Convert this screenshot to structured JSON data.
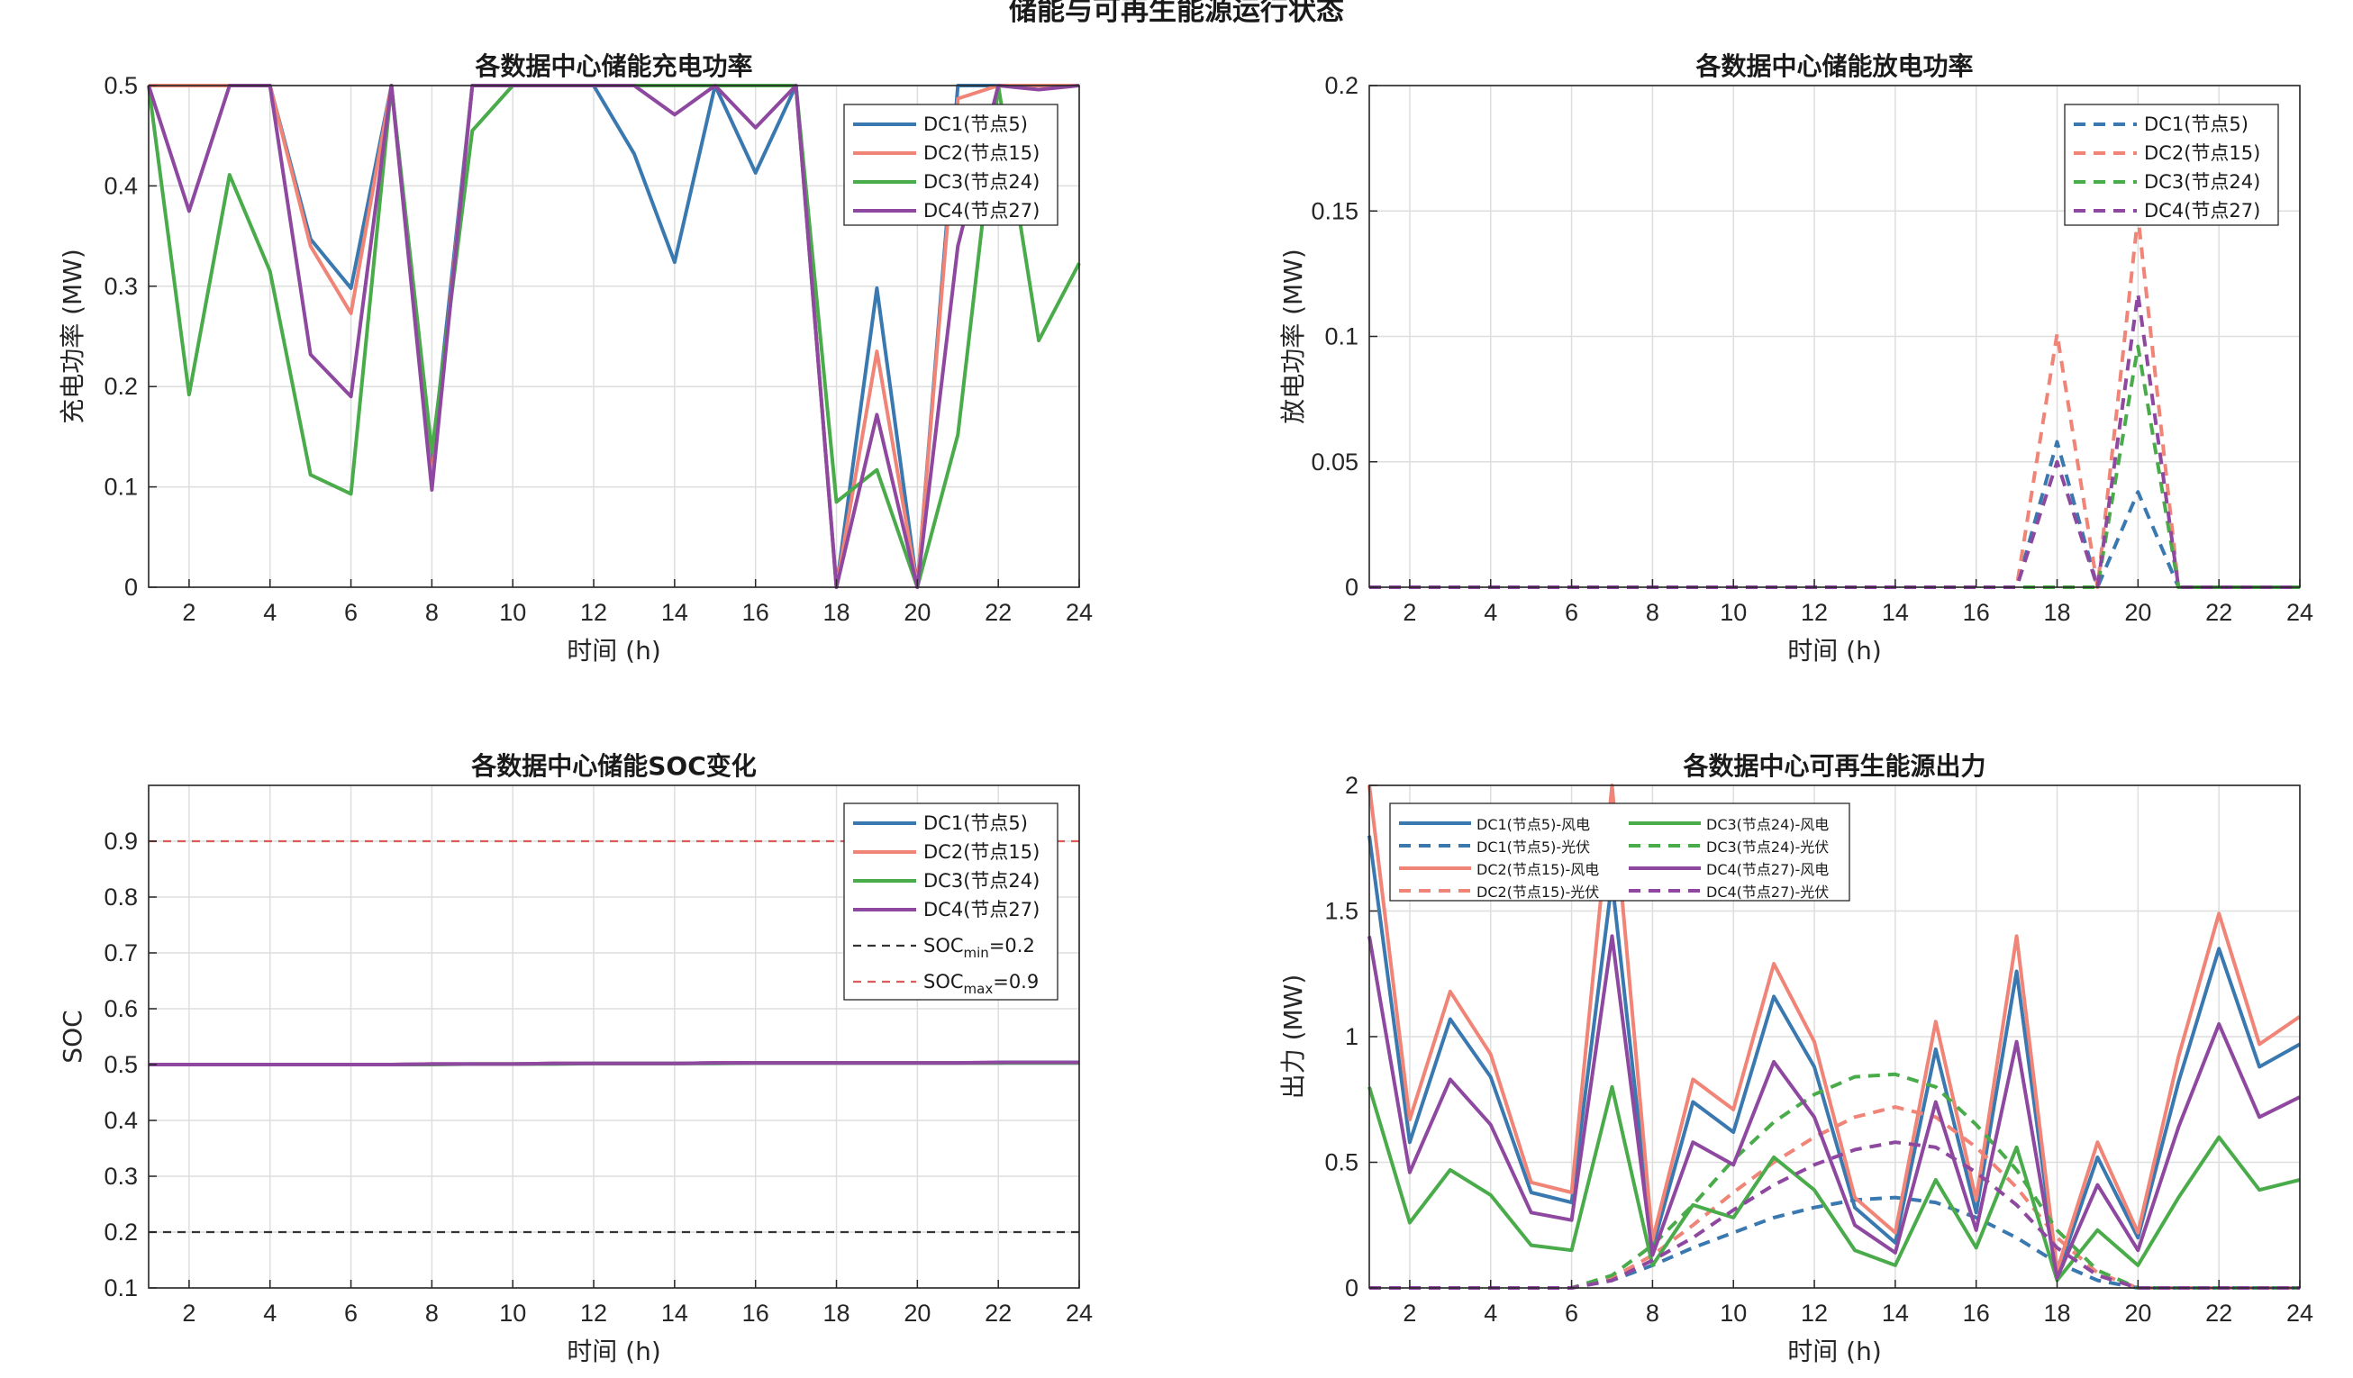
{
  "figure": {
    "title": "储能与可再生能源运行状态"
  },
  "colors": {
    "DC1": "#3a78b0",
    "DC2": "#f08477",
    "DC3": "#4aab4a",
    "DC4": "#8e48a0",
    "socmin": "#333333",
    "socmax": "#e05a5a",
    "grid": "#dedede",
    "axis": "#262626"
  },
  "chart_data": [
    {
      "id": "charge",
      "type": "line",
      "title": "各数据中心储能充电功率",
      "xlabel": "时间 (h)",
      "ylabel": "充电功率 (MW)",
      "xlim": [
        1,
        24
      ],
      "ylim": [
        0,
        0.5
      ],
      "xticks": [
        2,
        4,
        6,
        8,
        10,
        12,
        14,
        16,
        18,
        20,
        22,
        24
      ],
      "yticks": [
        0,
        0.1,
        0.2,
        0.3,
        0.4,
        0.5
      ],
      "grid": true,
      "legend_position": "top-right",
      "x": [
        1,
        2,
        3,
        4,
        5,
        6,
        7,
        8,
        9,
        10,
        11,
        12,
        13,
        14,
        15,
        16,
        17,
        18,
        19,
        20,
        21,
        22,
        23,
        24
      ],
      "series": [
        {
          "name": "DC1(节点5)",
          "color_key": "DC1",
          "dash": false,
          "values": [
            0.5,
            0.5,
            0.5,
            0.5,
            0.347,
            0.298,
            0.5,
            0.125,
            0.5,
            0.5,
            0.5,
            0.5,
            0.432,
            0.324,
            0.5,
            0.413,
            0.5,
            0.0,
            0.298,
            0.0,
            0.5,
            0.5,
            0.5,
            0.5
          ]
        },
        {
          "name": "DC2(节点15)",
          "color_key": "DC2",
          "dash": false,
          "values": [
            0.5,
            0.5,
            0.5,
            0.5,
            0.34,
            0.273,
            0.5,
            0.105,
            0.5,
            0.5,
            0.5,
            0.5,
            0.5,
            0.5,
            0.5,
            0.5,
            0.5,
            0.0,
            0.235,
            0.0,
            0.487,
            0.5,
            0.5,
            0.5
          ]
        },
        {
          "name": "DC3(节点24)",
          "color_key": "DC3",
          "dash": false,
          "values": [
            0.5,
            0.192,
            0.411,
            0.315,
            0.112,
            0.093,
            0.5,
            0.135,
            0.455,
            0.5,
            0.5,
            0.5,
            0.5,
            0.5,
            0.5,
            0.5,
            0.5,
            0.085,
            0.117,
            0.0,
            0.152,
            0.5,
            0.246,
            0.323
          ]
        },
        {
          "name": "DC4(节点27)",
          "color_key": "DC4",
          "dash": false,
          "values": [
            0.5,
            0.375,
            0.5,
            0.5,
            0.232,
            0.19,
            0.5,
            0.097,
            0.5,
            0.5,
            0.5,
            0.5,
            0.5,
            0.471,
            0.5,
            0.458,
            0.5,
            0.0,
            0.172,
            0.0,
            0.34,
            0.5,
            0.496,
            0.5
          ]
        }
      ]
    },
    {
      "id": "discharge",
      "type": "line",
      "title": "各数据中心储能放电功率",
      "xlabel": "时间 (h)",
      "ylabel": "放电功率 (MW)",
      "xlim": [
        1,
        24
      ],
      "ylim": [
        0,
        0.2
      ],
      "xticks": [
        2,
        4,
        6,
        8,
        10,
        12,
        14,
        16,
        18,
        20,
        22,
        24
      ],
      "yticks": [
        0,
        0.05,
        0.1,
        0.15,
        0.2
      ],
      "grid": true,
      "legend_position": "top-right",
      "x": [
        1,
        2,
        3,
        4,
        5,
        6,
        7,
        8,
        9,
        10,
        11,
        12,
        13,
        14,
        15,
        16,
        17,
        18,
        19,
        20,
        21,
        22,
        23,
        24
      ],
      "series": [
        {
          "name": "DC1(节点5)",
          "color_key": "DC1",
          "dash": true,
          "values": [
            0,
            0,
            0,
            0,
            0,
            0,
            0,
            0,
            0,
            0,
            0,
            0,
            0,
            0,
            0,
            0,
            0,
            0.058,
            0,
            0.038,
            0,
            0,
            0,
            0
          ]
        },
        {
          "name": "DC2(节点15)",
          "color_key": "DC2",
          "dash": true,
          "values": [
            0,
            0,
            0,
            0,
            0,
            0,
            0,
            0,
            0,
            0,
            0,
            0,
            0,
            0,
            0,
            0,
            0,
            0.101,
            0,
            0.148,
            0,
            0,
            0,
            0
          ]
        },
        {
          "name": "DC3(节点24)",
          "color_key": "DC3",
          "dash": true,
          "values": [
            0,
            0,
            0,
            0,
            0,
            0,
            0,
            0,
            0,
            0,
            0,
            0,
            0,
            0,
            0,
            0,
            0,
            0,
            0,
            0.096,
            0,
            0,
            0,
            0
          ]
        },
        {
          "name": "DC4(节点27)",
          "color_key": "DC4",
          "dash": true,
          "values": [
            0,
            0,
            0,
            0,
            0,
            0,
            0,
            0,
            0,
            0,
            0,
            0,
            0,
            0,
            0,
            0,
            0,
            0.05,
            0,
            0.117,
            0,
            0,
            0,
            0
          ]
        }
      ]
    },
    {
      "id": "soc",
      "type": "line",
      "title": "各数据中心储能SOC变化",
      "xlabel": "时间 (h)",
      "ylabel": "SOC",
      "xlim": [
        1,
        24
      ],
      "ylim": [
        0.1,
        1.0
      ],
      "xticks": [
        2,
        4,
        6,
        8,
        10,
        12,
        14,
        16,
        18,
        20,
        22,
        24
      ],
      "yticks": [
        0.1,
        0.2,
        0.3,
        0.4,
        0.5,
        0.6,
        0.7,
        0.8,
        0.9
      ],
      "grid": true,
      "legend_position": "top-right",
      "x": [
        1,
        2,
        3,
        4,
        5,
        6,
        7,
        8,
        9,
        10,
        11,
        12,
        13,
        14,
        15,
        16,
        17,
        18,
        19,
        20,
        21,
        22,
        23,
        24
      ],
      "series": [
        {
          "name": "DC1(节点5)",
          "color_key": "DC1",
          "dash": false,
          "values": [
            0.5,
            0.5,
            0.5,
            0.5,
            0.5,
            0.5,
            0.5,
            0.501,
            0.501,
            0.501,
            0.502,
            0.502,
            0.502,
            0.502,
            0.503,
            0.503,
            0.503,
            0.503,
            0.503,
            0.503,
            0.503,
            0.503,
            0.504,
            0.504
          ]
        },
        {
          "name": "DC2(节点15)",
          "color_key": "DC2",
          "dash": false,
          "values": [
            0.5,
            0.5,
            0.5,
            0.5,
            0.5,
            0.5,
            0.5,
            0.501,
            0.501,
            0.501,
            0.502,
            0.502,
            0.502,
            0.502,
            0.503,
            0.503,
            0.503,
            0.503,
            0.503,
            0.503,
            0.503,
            0.503,
            0.504,
            0.504
          ]
        },
        {
          "name": "DC3(节点24)",
          "color_key": "DC3",
          "dash": false,
          "values": [
            0.5,
            0.5,
            0.5,
            0.5,
            0.5,
            0.5,
            0.5,
            0.5,
            0.501,
            0.501,
            0.501,
            0.502,
            0.502,
            0.502,
            0.502,
            0.503,
            0.503,
            0.503,
            0.503,
            0.503,
            0.503,
            0.503,
            0.503,
            0.503
          ]
        },
        {
          "name": "DC4(节点27)",
          "color_key": "DC4",
          "dash": false,
          "values": [
            0.5,
            0.5,
            0.5,
            0.5,
            0.5,
            0.5,
            0.5,
            0.501,
            0.501,
            0.501,
            0.502,
            0.502,
            0.502,
            0.502,
            0.503,
            0.503,
            0.503,
            0.503,
            0.503,
            0.503,
            0.503,
            0.504,
            0.504,
            0.504
          ]
        },
        {
          "name": "SOC_min=0.2",
          "label_main": "SOC",
          "label_sub": "min",
          "label_tail": "=0.2",
          "color_key": "socmin",
          "dash": true,
          "thin": true,
          "values": [
            0.2,
            0.2,
            0.2,
            0.2,
            0.2,
            0.2,
            0.2,
            0.2,
            0.2,
            0.2,
            0.2,
            0.2,
            0.2,
            0.2,
            0.2,
            0.2,
            0.2,
            0.2,
            0.2,
            0.2,
            0.2,
            0.2,
            0.2,
            0.2
          ]
        },
        {
          "name": "SOC_max=0.9",
          "label_main": "SOC",
          "label_sub": "max",
          "label_tail": "=0.9",
          "color_key": "socmax",
          "dash": true,
          "thin": true,
          "values": [
            0.9,
            0.9,
            0.9,
            0.9,
            0.9,
            0.9,
            0.9,
            0.9,
            0.9,
            0.9,
            0.9,
            0.9,
            0.9,
            0.9,
            0.9,
            0.9,
            0.9,
            0.9,
            0.9,
            0.9,
            0.9,
            0.9,
            0.9,
            0.9
          ]
        }
      ]
    },
    {
      "id": "renewable",
      "type": "line",
      "title": "各数据中心可再生能源出力",
      "xlabel": "时间 (h)",
      "ylabel": "出力 (MW)",
      "xlim": [
        1,
        24
      ],
      "ylim": [
        0,
        2
      ],
      "xticks": [
        2,
        4,
        6,
        8,
        10,
        12,
        14,
        16,
        18,
        20,
        22,
        24
      ],
      "yticks": [
        0,
        0.5,
        1,
        1.5,
        2
      ],
      "grid": true,
      "legend_position": "top-left",
      "legend_columns": 2,
      "x": [
        1,
        2,
        3,
        4,
        5,
        6,
        7,
        8,
        9,
        10,
        11,
        12,
        13,
        14,
        15,
        16,
        17,
        18,
        19,
        20,
        21,
        22,
        23,
        24
      ],
      "series": [
        {
          "name": "DC1(节点5)-风电",
          "color_key": "DC1",
          "dash": false,
          "values": [
            1.8,
            0.58,
            1.07,
            0.84,
            0.38,
            0.34,
            1.62,
            0.16,
            0.74,
            0.62,
            1.16,
            0.88,
            0.32,
            0.18,
            0.95,
            0.3,
            1.26,
            0.05,
            0.52,
            0.2,
            0.82,
            1.35,
            0.88,
            0.97
          ]
        },
        {
          "name": "DC1(节点5)-光伏",
          "color_key": "DC1",
          "dash": true,
          "values": [
            0,
            0,
            0,
            0,
            0,
            0,
            0.03,
            0.09,
            0.16,
            0.22,
            0.28,
            0.32,
            0.35,
            0.36,
            0.34,
            0.28,
            0.2,
            0.1,
            0.03,
            0,
            0,
            0,
            0,
            0
          ]
        },
        {
          "name": "DC2(节点15)-风电",
          "color_key": "DC2",
          "dash": false,
          "values": [
            2.0,
            0.67,
            1.18,
            0.93,
            0.42,
            0.38,
            2.0,
            0.19,
            0.83,
            0.71,
            1.29,
            0.98,
            0.36,
            0.22,
            1.06,
            0.35,
            1.4,
            0.07,
            0.58,
            0.22,
            0.92,
            1.49,
            0.97,
            1.08
          ]
        },
        {
          "name": "DC2(节点15)-光伏",
          "color_key": "DC2",
          "dash": true,
          "values": [
            0,
            0,
            0,
            0,
            0,
            0,
            0.04,
            0.13,
            0.25,
            0.38,
            0.5,
            0.6,
            0.68,
            0.72,
            0.68,
            0.56,
            0.4,
            0.2,
            0.06,
            0,
            0,
            0,
            0,
            0
          ]
        },
        {
          "name": "DC3(节点24)-风电",
          "color_key": "DC3",
          "dash": false,
          "values": [
            0.8,
            0.26,
            0.47,
            0.37,
            0.17,
            0.15,
            0.8,
            0.09,
            0.33,
            0.28,
            0.52,
            0.39,
            0.15,
            0.09,
            0.43,
            0.16,
            0.56,
            0.03,
            0.23,
            0.09,
            0.36,
            0.6,
            0.39,
            0.43
          ]
        },
        {
          "name": "DC3(节点24)-光伏",
          "color_key": "DC3",
          "dash": true,
          "values": [
            0,
            0,
            0,
            0,
            0,
            0,
            0.05,
            0.17,
            0.33,
            0.51,
            0.66,
            0.77,
            0.84,
            0.85,
            0.8,
            0.65,
            0.47,
            0.23,
            0.07,
            0,
            0,
            0,
            0,
            0
          ]
        },
        {
          "name": "DC4(节点27)-风电",
          "color_key": "DC4",
          "dash": false,
          "values": [
            1.4,
            0.46,
            0.83,
            0.65,
            0.3,
            0.27,
            1.4,
            0.13,
            0.58,
            0.49,
            0.9,
            0.68,
            0.25,
            0.14,
            0.74,
            0.23,
            0.98,
            0.04,
            0.41,
            0.15,
            0.64,
            1.05,
            0.68,
            0.76
          ]
        },
        {
          "name": "DC4(节点27)-光伏",
          "color_key": "DC4",
          "dash": true,
          "values": [
            0,
            0,
            0,
            0,
            0,
            0,
            0.03,
            0.11,
            0.2,
            0.31,
            0.41,
            0.49,
            0.55,
            0.58,
            0.56,
            0.46,
            0.33,
            0.16,
            0.05,
            0,
            0,
            0,
            0,
            0
          ]
        }
      ]
    }
  ]
}
